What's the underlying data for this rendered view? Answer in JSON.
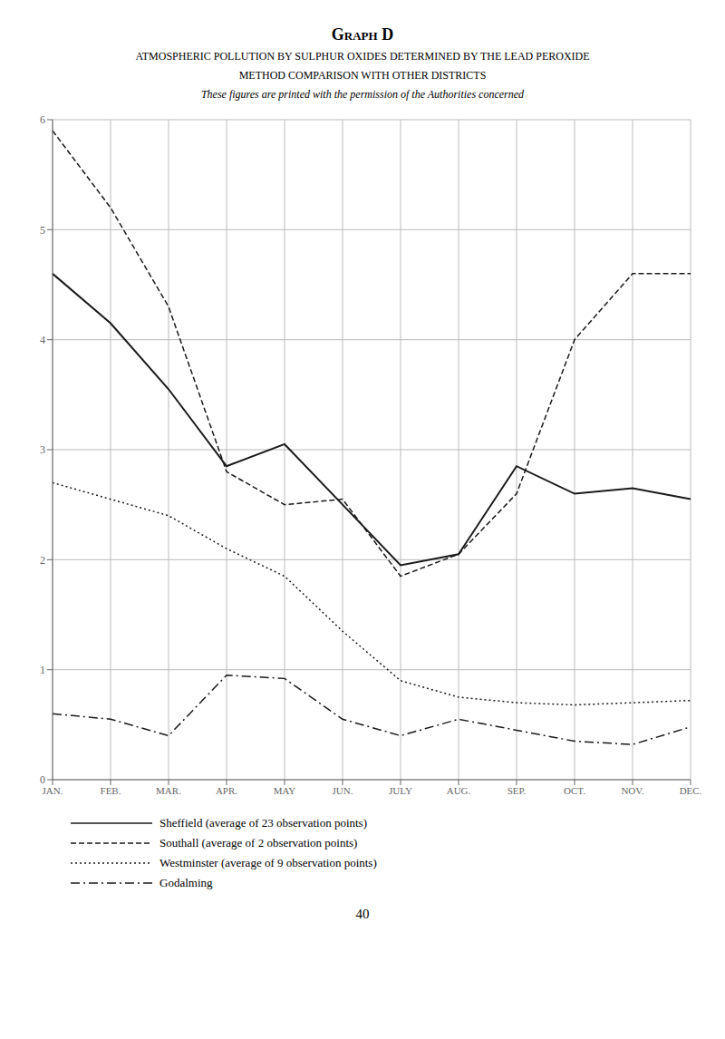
{
  "chart_data": {
    "type": "line",
    "title": "Graph D",
    "subtitle": [
      "ATMOSPHERIC POLLUTION BY SULPHUR OXIDES DETERMINED BY THE LEAD PEROXIDE",
      "METHOD COMPARISON WITH OTHER DISTRICTS",
      "These figures are printed with the permission of the Authorities concerned"
    ],
    "annotations": [
      "40"
    ],
    "categories": [
      "JAN.",
      "FEB.",
      "MAR.",
      "APR.",
      "MAY",
      "JUN.",
      "JULY",
      "AUG.",
      "SEP.",
      "OCT.",
      "NOV.",
      "DEC."
    ],
    "series": [
      {
        "name": "Sheffield (average of 23 observation points)",
        "color": "#1a1a1a",
        "line_style": "solid",
        "values": [
          4.6,
          4.15,
          3.55,
          2.85,
          3.05,
          2.5,
          1.95,
          2.05,
          2.85,
          2.6,
          2.65,
          2.55
        ]
      },
      {
        "name": "Southall (average of 2 observation points)",
        "color": "#1a1a1a",
        "line_style": "dashed",
        "values": [
          5.9,
          5.2,
          4.3,
          2.8,
          2.5,
          2.55,
          1.85,
          2.05,
          2.6,
          4.0,
          4.6,
          4.6
        ]
      },
      {
        "name": "Westminster (average of 9 observation points)",
        "color": "#1a1a1a",
        "line_style": "dotted",
        "values": [
          2.7,
          2.55,
          2.4,
          2.1,
          1.85,
          1.35,
          0.9,
          0.75,
          0.7,
          0.68,
          0.7,
          0.72
        ]
      },
      {
        "name": "Godalming",
        "color": "#1a1a1a",
        "line_style": "dashdot",
        "values": [
          0.6,
          0.55,
          0.4,
          0.95,
          0.92,
          0.55,
          0.4,
          0.55,
          0.45,
          0.35,
          0.32,
          0.48
        ]
      }
    ],
    "ylim": [
      0,
      6
    ],
    "yticks": [
      0,
      1,
      2,
      3,
      4,
      5,
      6
    ],
    "grid": true,
    "legend": "bottom"
  }
}
